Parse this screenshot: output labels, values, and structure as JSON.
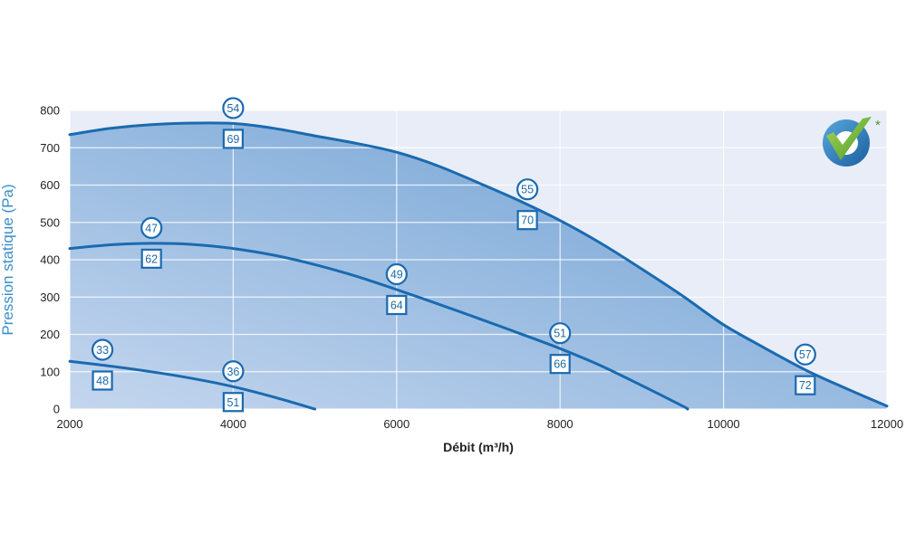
{
  "chart_data": {
    "type": "area",
    "xlabel": "Débit (m³/h)",
    "ylabel": "Pression statique (Pa)",
    "xlim": [
      2000,
      12000
    ],
    "ylim": [
      0,
      800
    ],
    "xticks": [
      "2000",
      "4000",
      "6000",
      "8000",
      "10000",
      "12000"
    ],
    "yticks": [
      "0",
      "100",
      "200",
      "300",
      "400",
      "500",
      "600",
      "700",
      "800"
    ],
    "grid": true,
    "colors": {
      "line": "#1a6ab0",
      "grid": "#ffffff",
      "plot_bg": "#e8edf7",
      "fill_light": "#c4d6ee",
      "fill_dark": "#6a9ed2",
      "axis_text": "#3a8ec9"
    },
    "series": [
      {
        "x": [
          2000,
          2500,
          3000,
          3500,
          4000,
          4500,
          5000,
          5500,
          6000,
          6500,
          7000,
          7500,
          8000,
          8500,
          9000,
          9500,
          10000,
          10500,
          11000,
          11500,
          12000
        ],
        "values": [
          735,
          752,
          762,
          766,
          765,
          752,
          732,
          712,
          688,
          652,
          606,
          558,
          505,
          444,
          375,
          303,
          226,
          164,
          105,
          55,
          8
        ],
        "markers": [
          {
            "x": 4000,
            "circle": "54",
            "square": "69"
          },
          {
            "x": 7600,
            "circle": "55",
            "square": "70"
          },
          {
            "x": 11000,
            "circle": "57",
            "square": "72"
          }
        ]
      },
      {
        "x": [
          2000,
          2500,
          3000,
          3500,
          4000,
          4500,
          5000,
          5500,
          6000,
          6500,
          7000,
          7500,
          8000,
          8500,
          9000,
          9500,
          9560
        ],
        "values": [
          430,
          440,
          444,
          441,
          430,
          412,
          387,
          356,
          320,
          282,
          243,
          203,
          162,
          116,
          63,
          8,
          0
        ],
        "markers": [
          {
            "x": 3000,
            "circle": "47",
            "square": "62"
          },
          {
            "x": 6000,
            "circle": "49",
            "square": "64"
          },
          {
            "x": 8000,
            "circle": "51",
            "square": "66"
          }
        ]
      },
      {
        "x": [
          2000,
          2500,
          3000,
          3500,
          4000,
          4500,
          5000
        ],
        "values": [
          128,
          115,
          100,
          82,
          60,
          32,
          0
        ],
        "markers": [
          {
            "x": 2400,
            "circle": "33",
            "square": "48"
          },
          {
            "x": 4000,
            "circle": "36",
            "square": "51"
          }
        ]
      }
    ]
  },
  "logo": {
    "name": "checkmark-logo-icon",
    "mark": "*"
  }
}
